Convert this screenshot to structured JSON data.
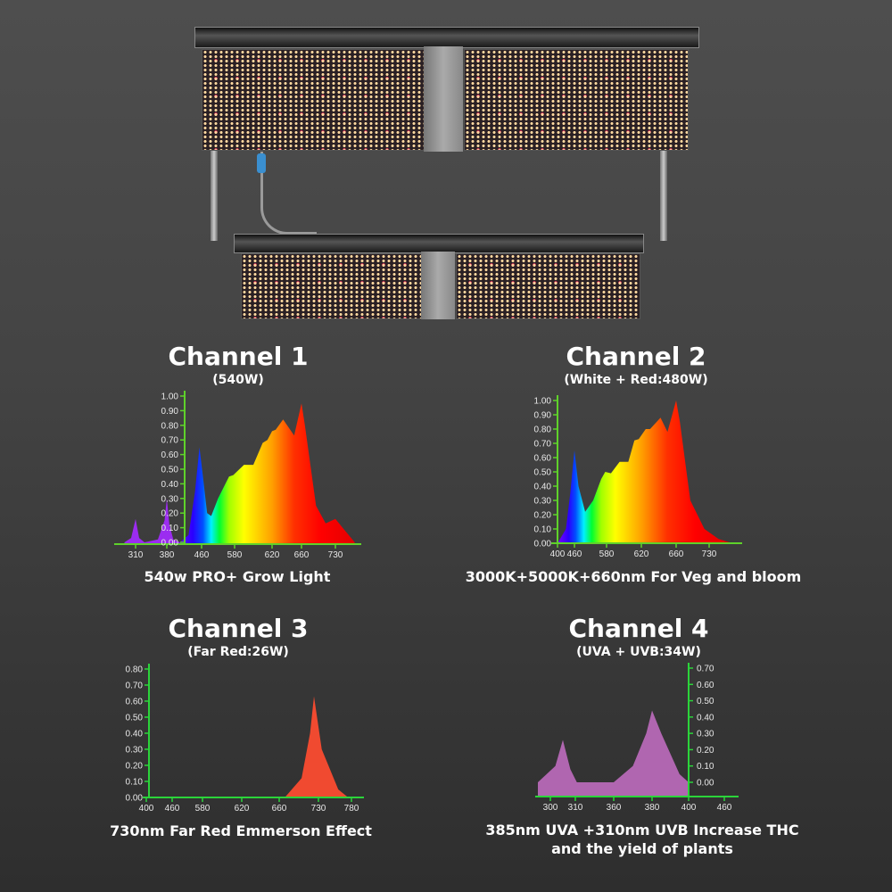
{
  "charts_text": [
    {
      "title": "Channel 1",
      "subtitle": "(540W)",
      "caption": "540w PRO+ Grow Light"
    },
    {
      "title": "Channel 2",
      "subtitle": "(White + Red:480W)",
      "caption": "3000K+5000K+660nm For Veg and bloom"
    },
    {
      "title": "Channel 3",
      "subtitle": "(Far Red:26W)",
      "caption": "730nm Far Red Emmerson Effect"
    },
    {
      "title": "Channel 4",
      "subtitle": "(UVA + UVB:34W)",
      "caption_line1": "385nm UVA +310nm UVB Increase THC",
      "caption_line2": "and the yield of plants"
    }
  ],
  "colors": {
    "axis": "#5fd22a",
    "axis_alt": "#2bd43a",
    "uv": "#9b2cf0",
    "far_red": "#f04a30",
    "uvab": "#b066b0"
  },
  "chart_data": [
    {
      "type": "area",
      "title": "Channel 1",
      "y_ticks": [
        "0.00",
        "0.10",
        "0.20",
        "0.30",
        "0.40",
        "0.50",
        "0.60",
        "0.70",
        "0.80",
        "0.90",
        "1.00"
      ],
      "ylim": [
        0,
        1
      ],
      "x_ticks": [
        310,
        380,
        460,
        580,
        620,
        660,
        730
      ],
      "points": [
        [
          285,
          0
        ],
        [
          300,
          0.03
        ],
        [
          310,
          0.16
        ],
        [
          318,
          0.03
        ],
        [
          330,
          0
        ],
        [
          360,
          0.02
        ],
        [
          375,
          0.15
        ],
        [
          380,
          0.3
        ],
        [
          386,
          0.12
        ],
        [
          395,
          0.02
        ],
        [
          410,
          0
        ],
        [
          430,
          0.05
        ],
        [
          445,
          0.35
        ],
        [
          455,
          0.65
        ],
        [
          465,
          0.45
        ],
        [
          480,
          0.2
        ],
        [
          495,
          0.18
        ],
        [
          520,
          0.3
        ],
        [
          560,
          0.45
        ],
        [
          575,
          0.46
        ],
        [
          590,
          0.53
        ],
        [
          600,
          0.53
        ],
        [
          610,
          0.68
        ],
        [
          615,
          0.7
        ],
        [
          620,
          0.76
        ],
        [
          625,
          0.77
        ],
        [
          635,
          0.84
        ],
        [
          650,
          0.73
        ],
        [
          660,
          0.95
        ],
        [
          667,
          0.8
        ],
        [
          690,
          0.25
        ],
        [
          710,
          0.13
        ],
        [
          730,
          0.16
        ],
        [
          745,
          0.1
        ],
        [
          770,
          0
        ]
      ]
    },
    {
      "type": "area",
      "title": "Channel 2",
      "y_ticks": [
        "0.00",
        "0.10",
        "0.20",
        "0.30",
        "0.40",
        "0.50",
        "0.60",
        "0.70",
        "0.80",
        "0.90",
        "1.00"
      ],
      "ylim": [
        0,
        1
      ],
      "x_ticks": [
        400,
        460,
        580,
        620,
        660,
        730
      ],
      "points": [
        [
          400,
          0
        ],
        [
          430,
          0.1
        ],
        [
          445,
          0.35
        ],
        [
          460,
          0.65
        ],
        [
          475,
          0.4
        ],
        [
          500,
          0.22
        ],
        [
          530,
          0.3
        ],
        [
          560,
          0.45
        ],
        [
          575,
          0.5
        ],
        [
          585,
          0.49
        ],
        [
          595,
          0.57
        ],
        [
          605,
          0.57
        ],
        [
          612,
          0.72
        ],
        [
          617,
          0.73
        ],
        [
          625,
          0.8
        ],
        [
          630,
          0.8
        ],
        [
          642,
          0.88
        ],
        [
          650,
          0.78
        ],
        [
          660,
          1.0
        ],
        [
          668,
          0.85
        ],
        [
          690,
          0.3
        ],
        [
          720,
          0.1
        ],
        [
          750,
          0.03
        ],
        [
          780,
          0
        ]
      ]
    },
    {
      "type": "area",
      "title": "Channel 3",
      "y_ticks": [
        "0.00",
        "0.10",
        "0.20",
        "0.30",
        "0.40",
        "0.50",
        "0.60",
        "0.70",
        "0.80"
      ],
      "ylim": [
        0,
        0.8
      ],
      "x_ticks": [
        400,
        460,
        580,
        620,
        660,
        730,
        780
      ],
      "points": [
        [
          670,
          0
        ],
        [
          700,
          0.12
        ],
        [
          715,
          0.4
        ],
        [
          722,
          0.63
        ],
        [
          735,
          0.3
        ],
        [
          760,
          0.05
        ],
        [
          775,
          0
        ]
      ]
    },
    {
      "type": "area",
      "title": "Channel 4",
      "y_ticks": [
        "0.00",
        "0.10",
        "0.20",
        "0.30",
        "0.40",
        "0.50",
        "0.60",
        "0.70"
      ],
      "ylim": [
        0,
        0.7
      ],
      "x_ticks": [
        300,
        310,
        360,
        380,
        400,
        460
      ],
      "points": [
        [
          295,
          0
        ],
        [
          302,
          0.1
        ],
        [
          305,
          0.26
        ],
        [
          308,
          0.08
        ],
        [
          312,
          0
        ],
        [
          360,
          0
        ],
        [
          370,
          0.1
        ],
        [
          377,
          0.3
        ],
        [
          380,
          0.44
        ],
        [
          385,
          0.3
        ],
        [
          395,
          0.05
        ],
        [
          400,
          0
        ]
      ]
    }
  ]
}
